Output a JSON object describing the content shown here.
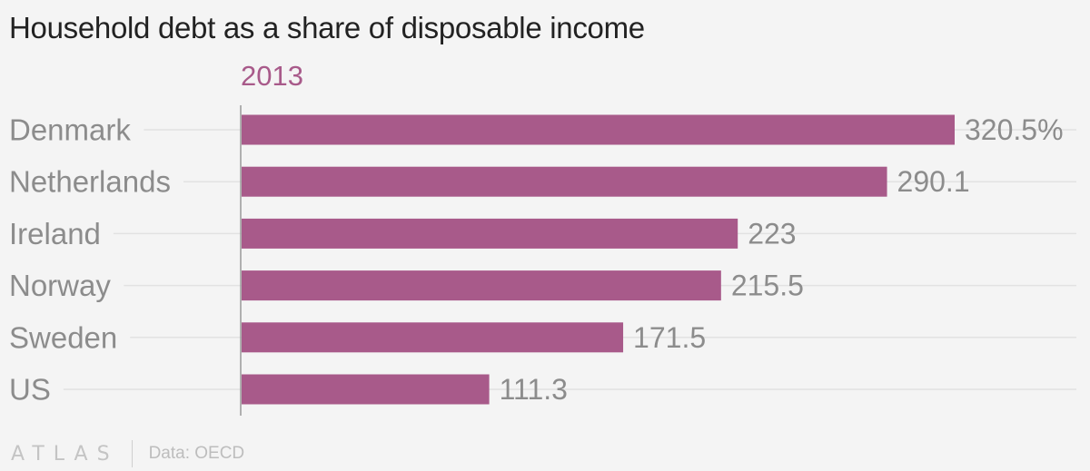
{
  "header": {
    "title": "Household debt as a share of disposable income"
  },
  "footer": {
    "logo_text": "ATLAS",
    "source": "Data: OECD"
  },
  "colors": {
    "bar": "#a85a8a",
    "series_label": "#a85a8a",
    "category_label": "#8c8c8c",
    "value_label": "#8c8c8c",
    "gridline": "#e2e2e2",
    "axis": "#9a9a9a"
  },
  "chart_data": {
    "type": "bar",
    "orientation": "horizontal",
    "title": "Household debt as a share of disposable income",
    "categories": [
      "Denmark",
      "Netherlands",
      "Ireland",
      "Norway",
      "Sweden",
      "US"
    ],
    "series": [
      {
        "name": "2013",
        "values": [
          320.5,
          290.1,
          223,
          215.5,
          171.5,
          111.3
        ],
        "value_labels": [
          "320.5%",
          "290.1",
          "223",
          "215.5",
          "171.5",
          "111.3"
        ]
      }
    ],
    "xlim": [
      0,
      320.5
    ],
    "grid": true,
    "legend": "none",
    "source": "Data: OECD"
  }
}
